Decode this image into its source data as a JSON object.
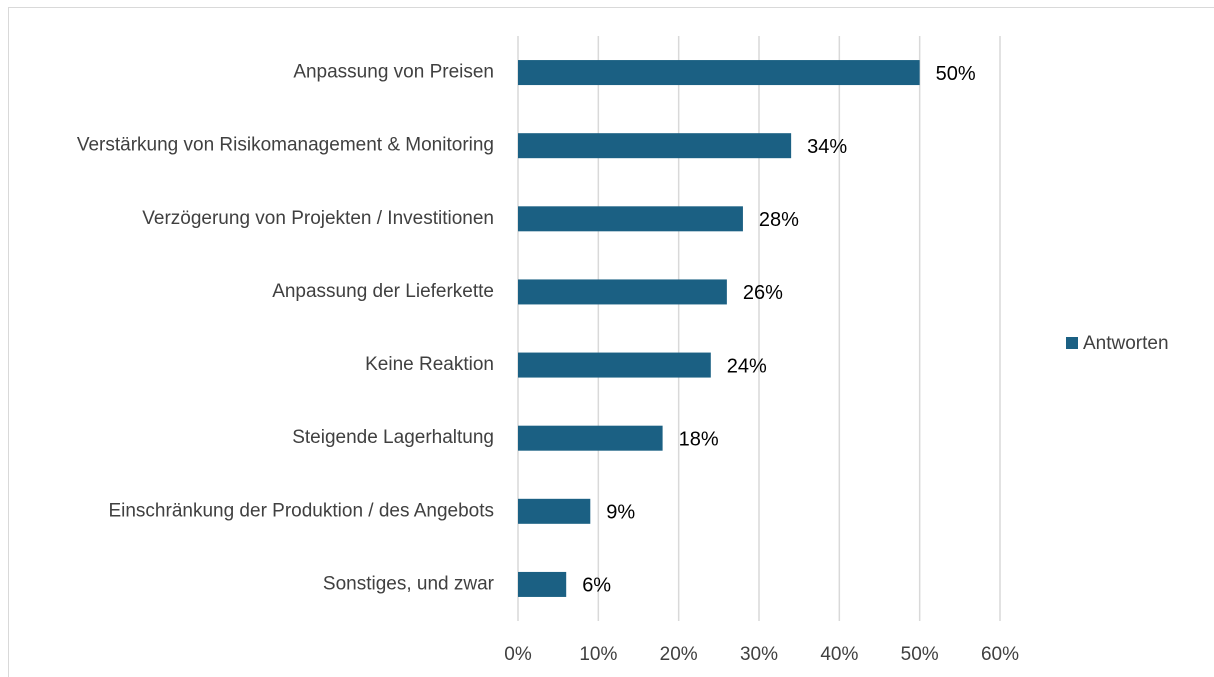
{
  "chart_data": {
    "type": "hbar",
    "categories": [
      "Anpassung von Preisen",
      "Verstärkung von Risikomanagement & Monitoring",
      "Verzögerung von Projekten / Investitionen",
      "Anpassung der Lieferkette",
      "Keine Reaktion",
      "Steigende Lagerhaltung",
      "Einschränkung der Produktion / des Angebots",
      "Sonstiges, und zwar"
    ],
    "series": [
      {
        "name": "Antworten",
        "color": "#1b6083",
        "values": [
          50,
          34,
          28,
          26,
          24,
          18,
          9,
          6
        ],
        "value_labels": [
          "50%",
          "34%",
          "28%",
          "26%",
          "24%",
          "18%",
          "9%",
          "6%"
        ]
      }
    ],
    "xlim": [
      0,
      60
    ],
    "xticks": [
      {
        "value": 0,
        "label": "0%"
      },
      {
        "value": 10,
        "label": "10%"
      },
      {
        "value": 20,
        "label": "20%"
      },
      {
        "value": 30,
        "label": "30%"
      },
      {
        "value": 40,
        "label": "40%"
      },
      {
        "value": 50,
        "label": "50%"
      },
      {
        "value": 60,
        "label": "60%"
      }
    ],
    "grid": true,
    "legend": "right"
  }
}
